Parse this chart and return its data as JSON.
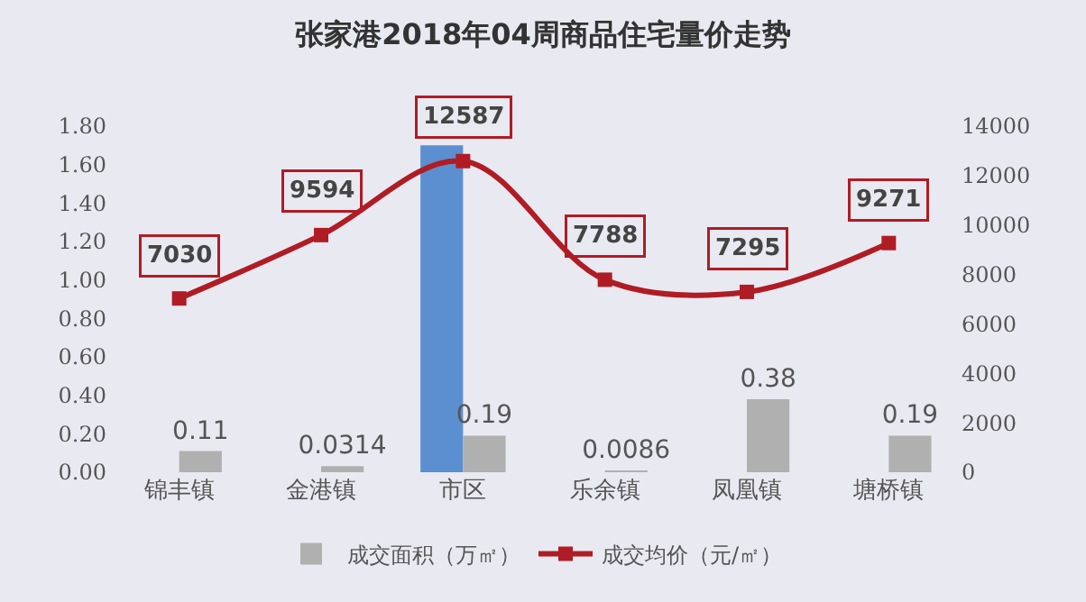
{
  "chart_data": {
    "type": "bar",
    "title": "张家港2018年04周商品住宅量价走势",
    "categories": [
      "锦丰镇",
      "金港镇",
      "市区",
      "乐余镇",
      "凤凰镇",
      "塘桥镇"
    ],
    "series": [
      {
        "color": "#5b8fd0",
        "values": [
          null,
          null,
          1.7,
          null,
          null,
          null
        ]
      },
      {
        "name": "成交面积（万㎡）",
        "color": "#b0b0b0",
        "values": [
          0.11,
          0.0314,
          0.19,
          0.0086,
          0.38,
          0.19
        ],
        "value_labels": [
          "0.11",
          "0.0314",
          "0.19",
          "0.0086",
          "0.38",
          "0.19"
        ]
      },
      {
        "name": "成交均价（元/㎡）",
        "type": "line",
        "axis": "y2",
        "color": "#b01c24",
        "marker": "square",
        "values": [
          7030,
          9594,
          12587,
          7788,
          7295,
          9271
        ],
        "value_labels": [
          "7030",
          "9594",
          "12587",
          "7788",
          "7295",
          "9271"
        ]
      }
    ],
    "ylim": [
      0,
      1.8
    ],
    "yticks": [
      {
        "value": 0,
        "label": "0.00"
      },
      {
        "value": 0.2,
        "label": "0.20"
      },
      {
        "value": 0.4,
        "label": "0.40"
      },
      {
        "value": 0.6,
        "label": "0.60"
      },
      {
        "value": 0.8,
        "label": "0.80"
      },
      {
        "value": 1,
        "label": "1.00"
      },
      {
        "value": 1.2,
        "label": "1.20"
      },
      {
        "value": 1.4,
        "label": "1.40"
      },
      {
        "value": 1.6,
        "label": "1.60"
      },
      {
        "value": 1.8,
        "label": "1.80"
      }
    ],
    "y2lim": [
      0,
      14000
    ],
    "y2ticks": [
      0,
      2000,
      4000,
      6000,
      8000,
      10000,
      12000,
      14000
    ],
    "grid": false,
    "legend": "bottom"
  }
}
